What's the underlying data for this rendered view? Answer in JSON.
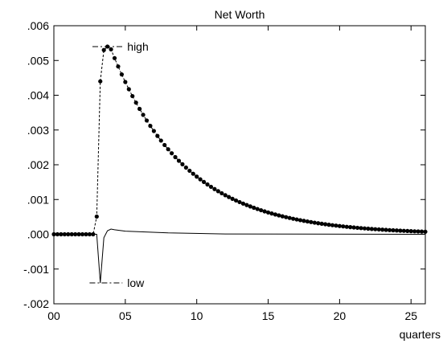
{
  "chart_data": {
    "type": "line",
    "title": "Net Worth",
    "xlabel": "quarters",
    "ylabel": "",
    "xlim": [
      0,
      26
    ],
    "ylim": [
      -0.002,
      0.006
    ],
    "x_ticks": [
      0,
      5,
      10,
      15,
      20,
      25
    ],
    "x_tick_labels": [
      "00",
      "05",
      "10",
      "15",
      "20",
      "25"
    ],
    "y_ticks": [
      -0.002,
      -0.001,
      0,
      0.001,
      0.002,
      0.003,
      0.004,
      0.005,
      0.006
    ],
    "y_tick_labels": [
      "-.002",
      "-.001",
      ".000",
      ".001",
      ".002",
      ".003",
      ".004",
      ".005",
      ".006"
    ],
    "grid": false,
    "series": [
      {
        "key": "high",
        "style": "dashed-with-dots",
        "x_start": 0,
        "step": 0.25,
        "onset": 3.0,
        "points": [
          [
            3.0,
            0.00051
          ],
          [
            3.25,
            0.0044
          ],
          [
            3.5,
            0.0053
          ],
          [
            3.75,
            0.0054
          ],
          [
            4.0,
            0.00532
          ]
        ],
        "decay_rate": 0.0474
      },
      {
        "key": "low",
        "style": "solid",
        "x_start": 0,
        "step": 0.25,
        "onset": 3.0,
        "points": [
          [
            3.0,
            0.0
          ],
          [
            3.25,
            -0.0014
          ],
          [
            3.5,
            -0.0001
          ],
          [
            3.75,
            0.0001
          ],
          [
            4.0,
            0.00015
          ],
          [
            4.25,
            0.00013
          ],
          [
            5.0,
            9e-05
          ],
          [
            8.0,
            4e-05
          ],
          [
            12.0,
            1e-05
          ],
          [
            26.0,
            0.0
          ]
        ]
      }
    ],
    "annotations": [
      {
        "text": "high",
        "x_from": 2.7,
        "x_to": 4.8,
        "y": 0.0054
      },
      {
        "text": "low",
        "x_from": 2.5,
        "x_to": 4.8,
        "y": -0.0014
      }
    ]
  }
}
